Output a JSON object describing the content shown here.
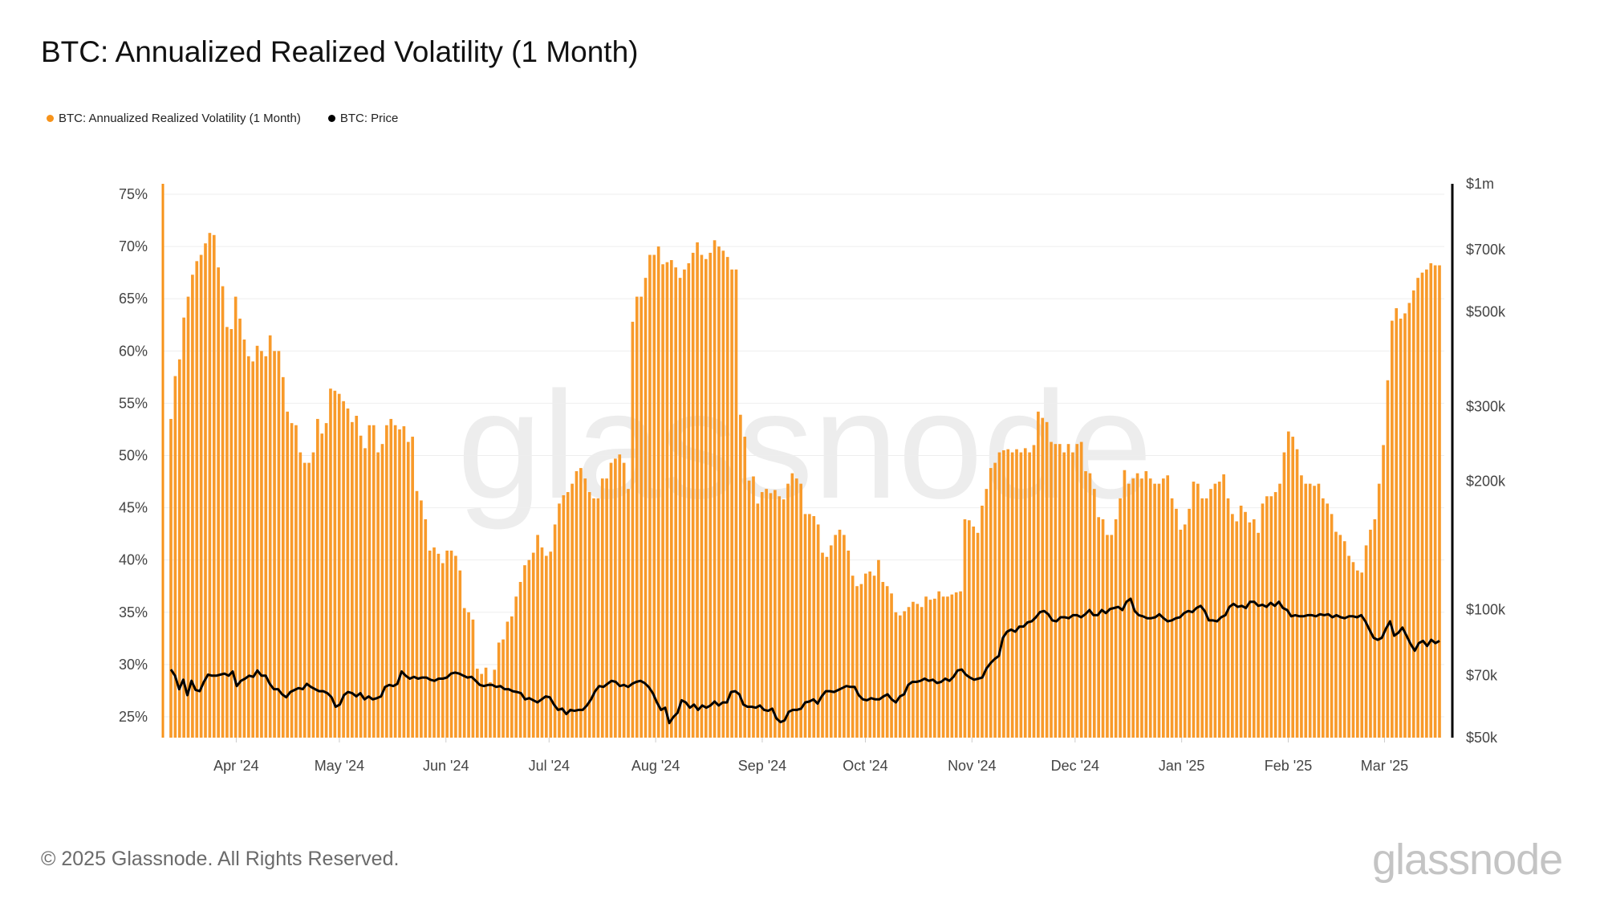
{
  "title": "BTC: Annualized Realized Volatility (1 Month)",
  "legend": [
    {
      "label": "BTC: Annualized Realized Volatility (1 Month)",
      "color": "#f7931a"
    },
    {
      "label": "BTC: Price",
      "color": "#000000"
    }
  ],
  "footer": "© 2025 Glassnode. All Rights Reserved.",
  "logo": "glassnode",
  "watermark": "glassnode",
  "chart_data": {
    "type": "bar+line",
    "title": "BTC: Annualized Realized Volatility (1 Month)",
    "x_range": [
      "2024-03-13",
      "2025-03-17"
    ],
    "x_ticks": [
      {
        "label": "Apr '24",
        "date": "2024-04-01"
      },
      {
        "label": "May '24",
        "date": "2024-05-01"
      },
      {
        "label": "Jun '24",
        "date": "2024-06-01"
      },
      {
        "label": "Jul '24",
        "date": "2024-07-01"
      },
      {
        "label": "Aug '24",
        "date": "2024-08-01"
      },
      {
        "label": "Sep '24",
        "date": "2024-09-01"
      },
      {
        "label": "Oct '24",
        "date": "2024-10-01"
      },
      {
        "label": "Nov '24",
        "date": "2024-11-01"
      },
      {
        "label": "Dec '24",
        "date": "2024-12-01"
      },
      {
        "label": "Jan '25",
        "date": "2025-01-01"
      },
      {
        "label": "Feb '25",
        "date": "2025-02-01"
      },
      {
        "label": "Mar '25",
        "date": "2025-03-01"
      }
    ],
    "y_left": {
      "scale": "linear",
      "unit": "%",
      "range": [
        23,
        76
      ],
      "ticks": [
        {
          "label": "25%",
          "value": 25
        },
        {
          "label": "30%",
          "value": 30
        },
        {
          "label": "35%",
          "value": 35
        },
        {
          "label": "40%",
          "value": 40
        },
        {
          "label": "45%",
          "value": 45
        },
        {
          "label": "50%",
          "value": 50
        },
        {
          "label": "55%",
          "value": 55
        },
        {
          "label": "60%",
          "value": 60
        },
        {
          "label": "65%",
          "value": 65
        },
        {
          "label": "70%",
          "value": 70
        },
        {
          "label": "75%",
          "value": 75
        }
      ]
    },
    "y_right": {
      "scale": "log",
      "unit": "USD",
      "range": [
        50000,
        1000000
      ],
      "ticks": [
        {
          "label": "$50k",
          "value": 50000
        },
        {
          "label": "$70k",
          "value": 70000
        },
        {
          "label": "$100k",
          "value": 100000
        },
        {
          "label": "$200k",
          "value": 200000
        },
        {
          "label": "$300k",
          "value": 300000
        },
        {
          "label": "$500k",
          "value": 500000
        },
        {
          "label": "$700k",
          "value": 700000
        },
        {
          "label": "$1m",
          "value": 1000000
        }
      ]
    },
    "grid": true,
    "legend_position": "top-left",
    "series": [
      {
        "name": "BTC: Annualized Realized Volatility (1 Month)",
        "type": "bar",
        "axis": "left",
        "color": "#f7931a",
        "values": [
          53.5,
          57.6,
          59.2,
          63.2,
          65.2,
          67.3,
          68.6,
          69.2,
          70.3,
          71.3,
          71.1,
          68.0,
          66.2,
          62.3,
          62.1,
          65.2,
          63.1,
          61.1,
          59.5,
          59.0,
          60.5,
          60.0,
          59.5,
          61.5,
          60.0,
          60.0,
          57.5,
          54.2,
          53.1,
          52.9,
          50.3,
          49.3,
          49.3,
          50.3,
          53.5,
          52.1,
          53.1,
          56.4,
          56.2,
          55.9,
          55.2,
          54.5,
          53.2,
          53.8,
          51.9,
          50.7,
          52.9,
          52.9,
          50.3,
          51.1,
          52.9,
          53.5,
          52.9,
          52.5,
          52.8,
          51.3,
          51.8,
          46.6,
          45.7,
          43.9,
          40.9,
          41.2,
          40.6,
          39.7,
          40.9,
          40.9,
          40.4,
          39.0,
          35.4,
          35.0,
          34.3,
          29.6,
          29.1,
          29.7,
          28.3,
          29.5,
          32.1,
          32.4,
          34.1,
          34.6,
          36.5,
          37.9,
          39.5,
          40.0,
          40.7,
          42.4,
          41.2,
          40.4,
          40.8,
          43.4,
          45.4,
          46.2,
          46.5,
          47.3,
          48.5,
          48.8,
          47.8,
          46.5,
          45.9,
          45.9,
          47.8,
          47.8,
          49.3,
          49.7,
          50.1,
          49.3,
          46.8,
          62.8,
          65.2,
          65.2,
          67.0,
          69.2,
          69.2,
          70.0,
          68.3,
          68.5,
          68.7,
          68.0,
          67.0,
          67.8,
          68.4,
          69.4,
          70.4,
          69.2,
          68.8,
          69.4,
          70.6,
          70.0,
          69.6,
          69.0,
          67.8,
          67.8,
          53.9,
          51.8,
          47.6,
          48.0,
          45.4,
          46.5,
          46.8,
          46.4,
          46.7,
          46.1,
          45.8,
          47.3,
          48.3,
          47.8,
          47.3,
          44.4,
          44.4,
          44.2,
          43.4,
          40.7,
          40.3,
          41.4,
          42.4,
          42.9,
          42.4,
          40.9,
          38.5,
          37.5,
          37.7,
          38.7,
          38.9,
          38.5,
          40.0,
          37.9,
          37.5,
          36.8,
          35.0,
          34.7,
          35.1,
          35.5,
          36.0,
          35.8,
          35.5,
          36.5,
          36.2,
          36.3,
          37.0,
          36.5,
          36.5,
          36.7,
          36.9,
          37.0,
          43.9,
          43.8,
          43.2,
          42.6,
          45.2,
          46.8,
          48.8,
          49.3,
          50.3,
          50.5,
          50.6,
          50.3,
          50.6,
          50.3,
          50.7,
          50.3,
          51.0,
          54.2,
          53.6,
          53.2,
          51.3,
          51.1,
          51.1,
          50.3,
          51.1,
          50.3,
          51.1,
          51.3,
          48.5,
          48.3,
          46.8,
          44.1,
          43.9,
          42.4,
          42.4,
          43.9,
          45.9,
          48.6,
          47.3,
          47.8,
          48.3,
          47.8,
          48.5,
          47.8,
          47.3,
          47.3,
          47.8,
          48.1,
          45.9,
          44.9,
          42.9,
          43.4,
          44.9,
          47.5,
          47.3,
          45.9,
          45.9,
          46.8,
          47.3,
          47.5,
          48.2,
          45.9,
          44.4,
          43.7,
          45.2,
          44.6,
          43.6,
          43.9,
          42.6,
          45.4,
          46.1,
          46.1,
          46.5,
          47.3,
          50.3,
          52.3,
          51.8,
          50.6,
          48.1,
          47.3,
          47.3,
          47.1,
          47.3,
          45.9,
          45.4,
          44.4,
          42.7,
          42.4,
          41.8,
          40.4,
          39.8,
          39.0,
          38.8,
          41.4,
          42.9,
          43.9,
          47.3,
          51.0,
          57.2,
          62.9,
          64.1,
          63.1,
          63.6,
          64.6,
          65.8,
          67.0,
          67.5,
          67.8,
          68.4,
          68.2,
          68.2
        ]
      },
      {
        "name": "BTC: Price",
        "type": "line",
        "axis": "right",
        "color": "#000000",
        "unit": "thousand USD",
        "values": [
          72.3,
          69.9,
          65.0,
          68.4,
          62.9,
          68.0,
          64.7,
          64.3,
          67.6,
          70.3,
          69.9,
          69.9,
          70.3,
          70.7,
          69.9,
          71.5,
          66.1,
          68.0,
          68.8,
          69.9,
          69.5,
          71.9,
          69.9,
          69.9,
          66.9,
          65.0,
          65.0,
          63.2,
          62.2,
          64.0,
          64.7,
          65.4,
          65.0,
          66.9,
          65.8,
          65.0,
          64.3,
          64.3,
          63.6,
          62.2,
          59.1,
          59.8,
          62.9,
          64.0,
          63.6,
          62.5,
          63.6,
          61.5,
          62.5,
          61.5,
          61.9,
          62.5,
          65.8,
          66.5,
          66.1,
          66.9,
          71.5,
          69.9,
          68.8,
          69.5,
          68.8,
          69.2,
          69.2,
          68.4,
          68.0,
          68.8,
          68.8,
          69.2,
          70.7,
          71.1,
          70.7,
          69.9,
          69.2,
          69.5,
          68.0,
          66.5,
          66.1,
          66.5,
          66.5,
          65.8,
          66.1,
          65.0,
          65.0,
          64.3,
          64.0,
          63.6,
          61.5,
          61.9,
          61.2,
          60.5,
          61.5,
          62.5,
          62.2,
          59.8,
          58.1,
          58.5,
          56.8,
          58.1,
          57.8,
          58.1,
          58.1,
          59.5,
          61.5,
          64.3,
          66.1,
          65.8,
          66.9,
          68.0,
          67.6,
          66.1,
          66.5,
          65.8,
          66.9,
          67.6,
          68.0,
          67.2,
          65.8,
          63.6,
          60.5,
          58.1,
          58.8,
          54.1,
          55.9,
          57.2,
          61.2,
          60.5,
          58.8,
          59.8,
          58.1,
          59.5,
          58.8,
          59.5,
          60.8,
          59.5,
          60.5,
          60.5,
          64.0,
          64.3,
          63.2,
          59.8,
          59.1,
          59.1,
          58.8,
          59.5,
          58.1,
          57.8,
          58.5,
          55.5,
          54.4,
          54.9,
          57.5,
          58.1,
          58.1,
          58.5,
          60.5,
          60.8,
          61.5,
          60.1,
          62.5,
          64.3,
          64.3,
          64.0,
          64.7,
          65.4,
          66.1,
          65.8,
          65.8,
          62.9,
          61.5,
          61.2,
          61.9,
          61.5,
          61.5,
          62.5,
          63.2,
          61.5,
          60.5,
          62.5,
          63.2,
          66.5,
          67.6,
          67.6,
          68.0,
          68.8,
          68.0,
          68.4,
          67.2,
          67.6,
          68.8,
          68.0,
          69.5,
          71.9,
          72.3,
          70.3,
          69.2,
          68.4,
          68.8,
          69.2,
          72.7,
          74.8,
          76.5,
          77.8,
          85.8,
          88.7,
          89.7,
          88.7,
          91.2,
          91.2,
          93.3,
          93.8,
          95.9,
          98.6,
          99.2,
          97.5,
          94.3,
          93.8,
          95.9,
          95.9,
          95.4,
          97.0,
          97.0,
          95.9,
          97.5,
          99.7,
          97.0,
          97.0,
          99.7,
          98.1,
          100.3,
          100.8,
          101.4,
          99.7,
          104.3,
          106.0,
          99.2,
          97.0,
          96.4,
          95.4,
          95.4,
          95.9,
          97.5,
          95.4,
          93.8,
          94.3,
          95.4,
          95.9,
          98.1,
          99.2,
          98.6,
          100.8,
          102.0,
          99.2,
          94.3,
          94.3,
          93.8,
          95.9,
          97.0,
          101.4,
          103.1,
          101.4,
          102.0,
          100.8,
          104.3,
          104.3,
          102.0,
          102.6,
          101.4,
          103.7,
          102.0,
          104.3,
          100.8,
          99.7,
          96.4,
          97.0,
          96.4,
          96.4,
          97.0,
          97.0,
          96.4,
          97.5,
          97.0,
          97.5,
          95.9,
          97.0,
          95.9,
          95.4,
          96.4,
          96.4,
          95.9,
          97.0,
          93.8,
          89.7,
          85.8,
          84.9,
          85.8,
          90.2,
          93.8,
          86.8,
          88.2,
          90.7,
          86.8,
          82.9,
          80.0,
          83.4,
          84.4,
          82.1,
          84.9,
          83.4,
          84.4
        ]
      }
    ]
  }
}
